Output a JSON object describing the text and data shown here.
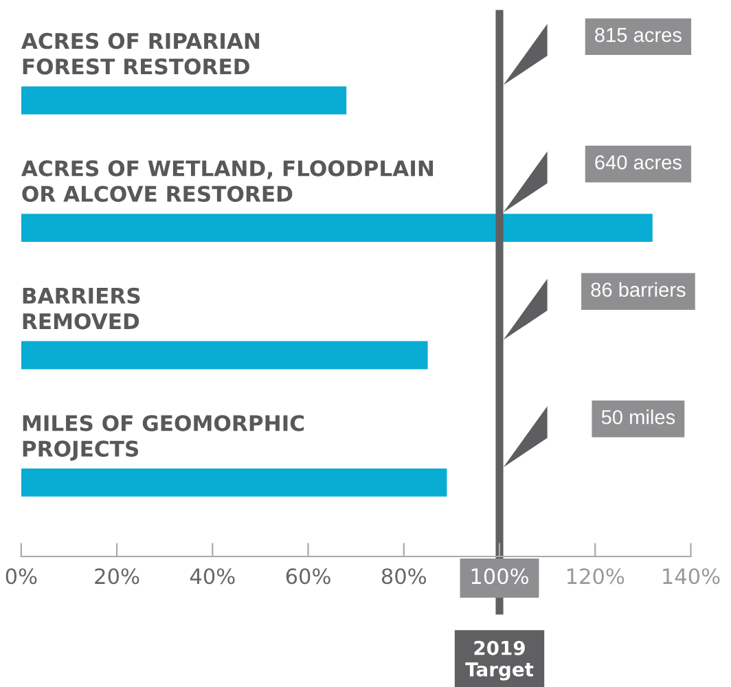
{
  "chart_data": {
    "type": "bar",
    "orientation": "horizontal",
    "categories": [
      "ACRES OF RIPARIAN\nFOREST RESTORED",
      "ACRES OF WETLAND, FLOODPLAIN\nOR ALCOVE RESTORED",
      "BARRIERS\nREMOVED",
      "MILES OF GEOMORPHIC\nPROJECTS"
    ],
    "values": [
      68,
      132,
      85,
      89
    ],
    "color": "#09acd3",
    "xlim": [
      0,
      140
    ],
    "xticks": [
      {
        "value": 0,
        "label": "0%"
      },
      {
        "value": 20,
        "label": "20%"
      },
      {
        "value": 40,
        "label": "40%"
      },
      {
        "value": 60,
        "label": "60%"
      },
      {
        "value": 80,
        "label": "80%"
      },
      {
        "value": 100,
        "label": "100%"
      },
      {
        "value": 120,
        "label": "120%"
      },
      {
        "value": 140,
        "label": "140%"
      }
    ],
    "ref_lines": [
      {
        "axis": "x",
        "value": 100,
        "label": "2019\nTarget",
        "color": "#606062"
      }
    ],
    "annotations": [
      "815 acres",
      "640 acres",
      "86 barriers",
      "50 miles"
    ],
    "grid": false,
    "legend": false
  }
}
